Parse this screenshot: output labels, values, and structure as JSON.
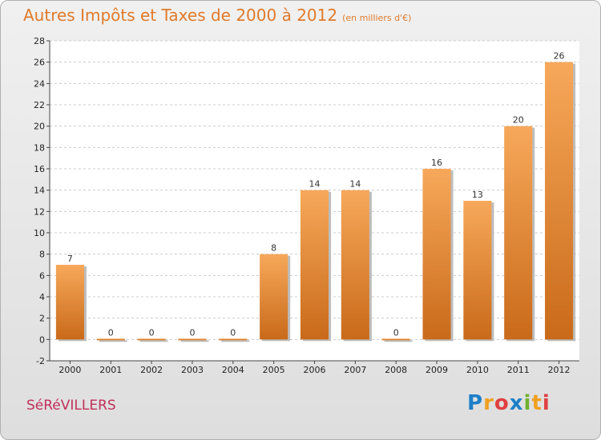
{
  "header": {
    "title": "Autres Impôts et Taxes de 2000 à 2012",
    "unit": "(en milliers d'€)"
  },
  "footer": {
    "commune": "SéRéVILLERS",
    "brand": {
      "letters": [
        "P",
        "r",
        "o",
        "x",
        "i",
        "t",
        "i"
      ],
      "colors": [
        "#1e7fc8",
        "#f0a020",
        "#e04040",
        "#1e7fc8",
        "#70b030",
        "#f0a020",
        "#e04040"
      ]
    }
  },
  "colors": {
    "bar_top": "#f7a85a",
    "bar_bottom": "#c96a1a",
    "title": "#e07a2a",
    "commune": "#c0305a"
  },
  "chart_data": {
    "type": "bar",
    "title": "Autres Impôts et Taxes de 2000 à 2012",
    "subtitle": "(en milliers d'€)",
    "categories": [
      "2000",
      "2001",
      "2002",
      "2003",
      "2004",
      "2005",
      "2006",
      "2007",
      "2008",
      "2009",
      "2010",
      "2011",
      "2012"
    ],
    "values": [
      7,
      0,
      0,
      0,
      0,
      8,
      14,
      14,
      0,
      16,
      13,
      20,
      26
    ],
    "ylim": [
      -2,
      28
    ],
    "yticks": [
      -2,
      0,
      2,
      4,
      6,
      8,
      10,
      12,
      14,
      16,
      18,
      20,
      22,
      24,
      26,
      28
    ],
    "grid": true
  }
}
